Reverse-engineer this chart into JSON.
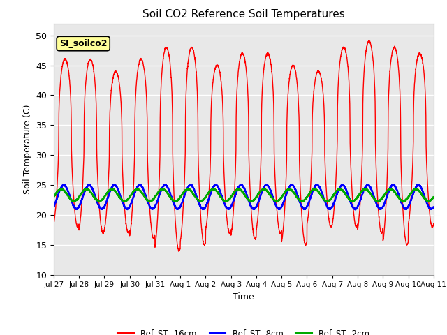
{
  "title": "Soil CO2 Reference Soil Temperatures",
  "xlabel": "Time",
  "ylabel": "Soil Temperature (C)",
  "ylim": [
    10,
    52
  ],
  "yticks": [
    10,
    15,
    20,
    25,
    30,
    35,
    40,
    45,
    50
  ],
  "x_labels": [
    "Jul 27",
    "Jul 28",
    "Jul 29",
    "Jul 30",
    "Jul 31",
    "Aug 1",
    "Aug 2",
    "Aug 3",
    "Aug 4",
    "Aug 5",
    "Aug 6",
    "Aug 7",
    "Aug 8",
    "Aug 9",
    "Aug 10",
    "Aug 11"
  ],
  "legend_label": "SI_soilco2",
  "series": [
    {
      "label": "Ref_ST -16cm",
      "color": "#ff0000"
    },
    {
      "label": "Ref_ST -8cm",
      "color": "#0000ff"
    },
    {
      "label": "Ref_ST -2cm",
      "color": "#00aa00"
    }
  ],
  "plot_bg_color": "#e8e8e8",
  "grid_color": "#ffffff",
  "n_points": 3600
}
